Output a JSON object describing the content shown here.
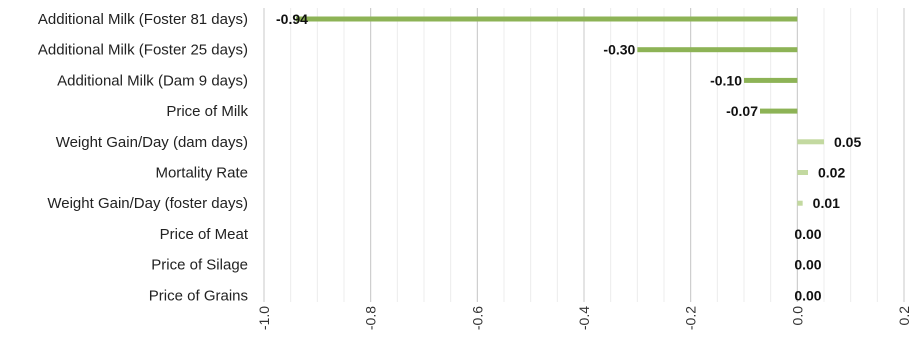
{
  "chart_data": {
    "type": "bar",
    "orientation": "horizontal",
    "title": "",
    "xlabel": "",
    "ylabel": "",
    "categories": [
      "Additional Milk (Foster 81 days)",
      "Additional Milk (Foster 25 days)",
      "Additional Milk  (Dam 9 days)",
      "Price of Milk",
      "Weight Gain/Day (dam days)",
      "Mortality Rate",
      "Weight Gain/Day (foster days)",
      "Price of Meat",
      "Price of Silage",
      "Price of Grains"
    ],
    "values": [
      -0.94,
      -0.3,
      -0.1,
      -0.07,
      0.05,
      0.02,
      0.01,
      0.0,
      0.0,
      0.0
    ],
    "value_labels": [
      "-0.94",
      "-0.30",
      "-0.10",
      "-0.07",
      "0.05",
      "0.02",
      "0.01",
      "0.00",
      "0.00",
      "0.00"
    ],
    "xlim": [
      -1.0,
      0.2
    ],
    "xticks": [
      -1.0,
      -0.8,
      -0.6,
      -0.4,
      -0.2,
      0.0,
      0.2
    ],
    "xtick_labels": [
      "-1.0",
      "-0.8",
      "-0.6",
      "-0.4",
      "-0.2",
      "0.0",
      "0.2"
    ],
    "grid": true,
    "legend": "none",
    "colors": {
      "negative_bar": "#8db356",
      "positive_bar": "#c3d9a0",
      "major_grid": "#c8c8c8",
      "minor_grid": "#ececec",
      "axis": "#bfbfbf"
    }
  }
}
